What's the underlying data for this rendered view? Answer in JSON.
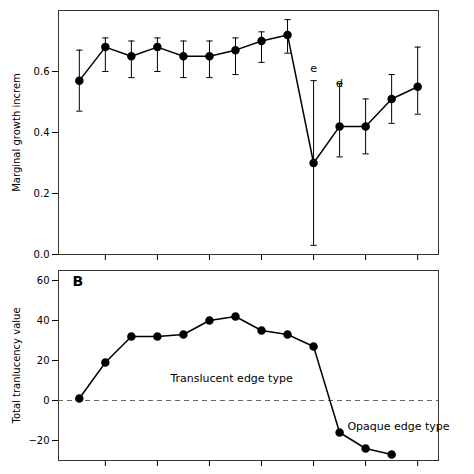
{
  "chart_data": [
    {
      "type": "line",
      "ylabel": "Marginal growth increm",
      "x": [
        1,
        2,
        3,
        4,
        5,
        6,
        7,
        8,
        9,
        10,
        11,
        12,
        13,
        14
      ],
      "values": [
        0.57,
        0.68,
        0.65,
        0.68,
        0.65,
        0.65,
        0.67,
        0.7,
        0.72,
        0.3,
        0.42,
        0.42,
        0.51,
        0.55
      ],
      "yerr_lo": [
        0.1,
        0.08,
        0.07,
        0.08,
        0.07,
        0.07,
        0.08,
        0.07,
        0.06,
        0.27,
        0.1,
        0.09,
        0.08,
        0.09
      ],
      "yerr_hi": [
        0.1,
        0.03,
        0.05,
        0.03,
        0.05,
        0.05,
        0.04,
        0.03,
        0.05,
        0.27,
        0.14,
        0.09,
        0.08,
        0.13
      ],
      "xlim": [
        0.2,
        14.8
      ],
      "xticks": [
        2,
        4,
        6,
        8,
        10,
        12,
        14
      ],
      "ylim": [
        0.0,
        0.8
      ],
      "yticks": [
        0.0,
        0.2,
        0.4,
        0.6
      ],
      "tick_labels": "y",
      "grid": false,
      "color": "#000000",
      "marker": "circle",
      "line_style": "solid",
      "annotations": [
        {
          "text": "e",
          "x": 10,
          "y": 0.6
        },
        {
          "text": "d",
          "x": 11,
          "y": 0.55
        }
      ]
    },
    {
      "type": "line",
      "ylabel": "Total tranlucency value",
      "panel_label": "B",
      "x": [
        1,
        2,
        3,
        4,
        5,
        6,
        7,
        8,
        9,
        10,
        11,
        12,
        13
      ],
      "values": [
        1,
        19,
        32,
        32,
        33,
        40,
        42,
        35,
        33,
        27,
        -16,
        -24,
        -27
      ],
      "xlim": [
        0.2,
        14.8
      ],
      "xticks": [
        2,
        4,
        6,
        8,
        10,
        12,
        14
      ],
      "ylim": [
        -30,
        65
      ],
      "yticks": [
        -20,
        0,
        20,
        40,
        60
      ],
      "tick_labels": "y",
      "grid": false,
      "color": "#000000",
      "marker": "circle",
      "line_style": "solid",
      "hline": {
        "y": 0,
        "color": "#666666",
        "line_style": "dashed"
      },
      "annotations": [
        {
          "text": "Translucent edge type",
          "x": 4.5,
          "y": 11
        },
        {
          "text": "Opaque edge type",
          "x": 11.3,
          "y": -13
        }
      ]
    }
  ]
}
